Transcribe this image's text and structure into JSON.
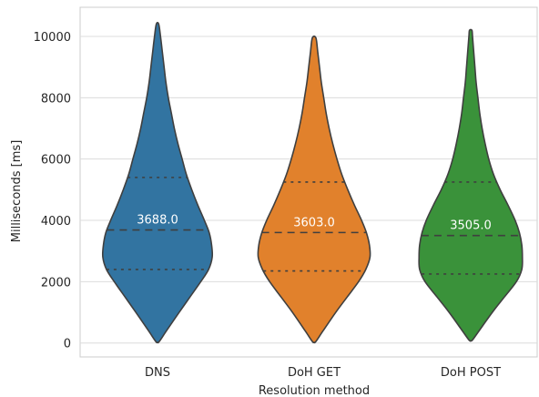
{
  "chart_data": {
    "type": "violin",
    "xlabel": "Resolution method",
    "ylabel": "Milliseconds [ms]",
    "ylim": [
      -400,
      10900
    ],
    "yticks": [
      0,
      2000,
      4000,
      6000,
      8000,
      10000
    ],
    "grid": "horizontal",
    "categories": [
      "DNS",
      "DoH GET",
      "DoH POST"
    ],
    "series": [
      {
        "color": "#3274a1",
        "median": 3688.0,
        "median_label": "3688.0",
        "q1": 2400,
        "q3": 5400,
        "min": 50,
        "max": 10400,
        "profile": [
          [
            50,
            0.03
          ],
          [
            400,
            0.15
          ],
          [
            1000,
            0.36
          ],
          [
            1500,
            0.54
          ],
          [
            2000,
            0.72
          ],
          [
            2400,
            0.85
          ],
          [
            2800,
            0.91
          ],
          [
            3200,
            0.9
          ],
          [
            3600,
            0.86
          ],
          [
            4000,
            0.78
          ],
          [
            4500,
            0.67
          ],
          [
            5000,
            0.57
          ],
          [
            5500,
            0.48
          ],
          [
            6000,
            0.41
          ],
          [
            6500,
            0.34
          ],
          [
            7000,
            0.28
          ],
          [
            7500,
            0.23
          ],
          [
            8000,
            0.18
          ],
          [
            8500,
            0.14
          ],
          [
            9000,
            0.11
          ],
          [
            9500,
            0.08
          ],
          [
            10000,
            0.05
          ],
          [
            10400,
            0.02
          ]
        ]
      },
      {
        "color": "#e1812c",
        "median": 3603.0,
        "median_label": "3603.0",
        "q1": 2350,
        "q3": 5250,
        "min": 50,
        "max": 9950,
        "profile": [
          [
            50,
            0.03
          ],
          [
            400,
            0.15
          ],
          [
            1000,
            0.36
          ],
          [
            1500,
            0.55
          ],
          [
            2000,
            0.74
          ],
          [
            2400,
            0.86
          ],
          [
            2800,
            0.93
          ],
          [
            3200,
            0.92
          ],
          [
            3600,
            0.87
          ],
          [
            4000,
            0.79
          ],
          [
            4500,
            0.67
          ],
          [
            5000,
            0.56
          ],
          [
            5500,
            0.46
          ],
          [
            6000,
            0.38
          ],
          [
            6500,
            0.31
          ],
          [
            7000,
            0.25
          ],
          [
            7500,
            0.2
          ],
          [
            8000,
            0.16
          ],
          [
            8500,
            0.12
          ],
          [
            9000,
            0.09
          ],
          [
            9500,
            0.06
          ],
          [
            9950,
            0.03
          ]
        ]
      },
      {
        "color": "#3a923a",
        "median": 3505.0,
        "median_label": "3505.0",
        "q1": 2250,
        "q3": 5250,
        "min": 100,
        "max": 10200,
        "profile": [
          [
            100,
            0.03
          ],
          [
            400,
            0.14
          ],
          [
            1000,
            0.36
          ],
          [
            1500,
            0.56
          ],
          [
            2000,
            0.76
          ],
          [
            2400,
            0.85
          ],
          [
            2800,
            0.86
          ],
          [
            3200,
            0.85
          ],
          [
            3600,
            0.81
          ],
          [
            4000,
            0.74
          ],
          [
            4500,
            0.62
          ],
          [
            5000,
            0.49
          ],
          [
            5500,
            0.38
          ],
          [
            6000,
            0.3
          ],
          [
            6500,
            0.24
          ],
          [
            7000,
            0.19
          ],
          [
            7500,
            0.15
          ],
          [
            8000,
            0.12
          ],
          [
            8500,
            0.09
          ],
          [
            9000,
            0.07
          ],
          [
            9500,
            0.05
          ],
          [
            10000,
            0.03
          ],
          [
            10200,
            0.02
          ]
        ]
      }
    ]
  }
}
